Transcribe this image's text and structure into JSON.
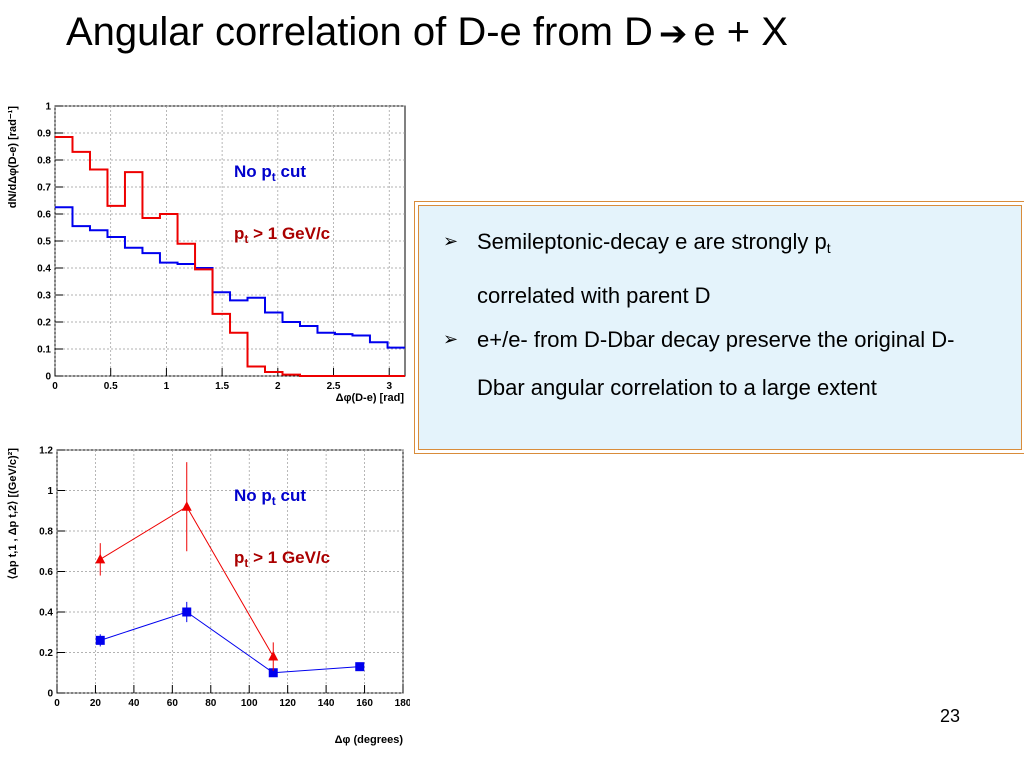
{
  "slide": {
    "title_main": "Angular correlation of D-e from D",
    "title_arrow": "➔",
    "title_tail": "e + X",
    "page_number": "23"
  },
  "colors": {
    "no_cut": "#0000ee",
    "pt_cut": "#ee0000",
    "no_cut_text": "#0000cc",
    "pt_cut_text": "#aa0000"
  },
  "legend": {
    "no_cut": {
      "prefix": "No p",
      "sub": "t",
      "suffix": " cut"
    },
    "pt_cut": {
      "prefix": "p",
      "sub": "t",
      "suffix": " > 1 GeV/c"
    }
  },
  "callout": {
    "bullet_icon": "arrow-bullet-icon",
    "bullet_glyph": "➢",
    "items": [
      {
        "text": "Semileptonic-decay e are strongly p",
        "sub": "t",
        "text2": " correlated with parent D"
      },
      {
        "text": " e+/e- from D-Dbar decay preserve the original D-Dbar angular correlation to a large extent",
        "sub": "",
        "text2": ""
      }
    ]
  },
  "chart_data": [
    {
      "type": "histogram",
      "xlabel": "Δφ(D-e)  [rad]",
      "ylabel": "dN/dΔφ(D-e) [rad⁻¹]",
      "xlim": [
        0,
        3.1416
      ],
      "ylim": [
        0,
        1
      ],
      "grid": true,
      "x_ticks": [
        "0",
        "0.5",
        "1",
        "1.5",
        "2",
        "2.5",
        "3"
      ],
      "y_ticks": [
        "0",
        "0.1",
        "0.2",
        "0.3",
        "0.4",
        "0.5",
        "0.6",
        "0.7",
        "0.8",
        "0.9",
        "1"
      ],
      "bin_edges": [
        0,
        0.157,
        0.314,
        0.471,
        0.628,
        0.785,
        0.942,
        1.1,
        1.257,
        1.414,
        1.571,
        1.728,
        1.885,
        2.042,
        2.199,
        2.356,
        2.513,
        2.67,
        2.827,
        2.985,
        3.1416
      ],
      "series": [
        {
          "name": "No pt cut",
          "values": [
            0.625,
            0.555,
            0.54,
            0.515,
            0.475,
            0.455,
            0.42,
            0.415,
            0.4,
            0.31,
            0.28,
            0.29,
            0.235,
            0.2,
            0.185,
            0.16,
            0.155,
            0.15,
            0.125,
            0.105
          ]
        },
        {
          "name": "pt > 1 GeV/c",
          "values": [
            0.885,
            0.83,
            0.765,
            0.63,
            0.755,
            0.585,
            0.6,
            0.49,
            0.395,
            0.23,
            0.16,
            0.035,
            0.015,
            0.005,
            0.0,
            0.0,
            0.0,
            0.0,
            0.0,
            0.0
          ]
        }
      ]
    },
    {
      "type": "scatter",
      "xlabel": "Δφ (degrees)",
      "ylabel": "⟨Δp t,1 , Δp t,2⟩   [(GeV/c)²]",
      "xlim": [
        0,
        180
      ],
      "ylim": [
        0,
        1.2
      ],
      "grid": true,
      "x_ticks": [
        "0",
        "20",
        "40",
        "60",
        "80",
        "100",
        "120",
        "140",
        "160",
        "180"
      ],
      "y_ticks": [
        "0",
        "0.2",
        "0.4",
        "0.6",
        "0.8",
        "1",
        "1.2"
      ],
      "series": [
        {
          "name": "No pt cut",
          "marker": "square",
          "x": [
            22.5,
            67.5,
            112.5,
            157.5
          ],
          "y": [
            0.26,
            0.4,
            0.1,
            0.13
          ],
          "err": [
            0.03,
            0.05,
            0.015,
            0.015
          ]
        },
        {
          "name": "pt > 1 GeV/c",
          "marker": "triangle",
          "x": [
            22.5,
            67.5,
            112.5
          ],
          "y": [
            0.66,
            0.92,
            0.18
          ],
          "err": [
            0.08,
            0.22,
            0.07
          ]
        }
      ]
    }
  ]
}
